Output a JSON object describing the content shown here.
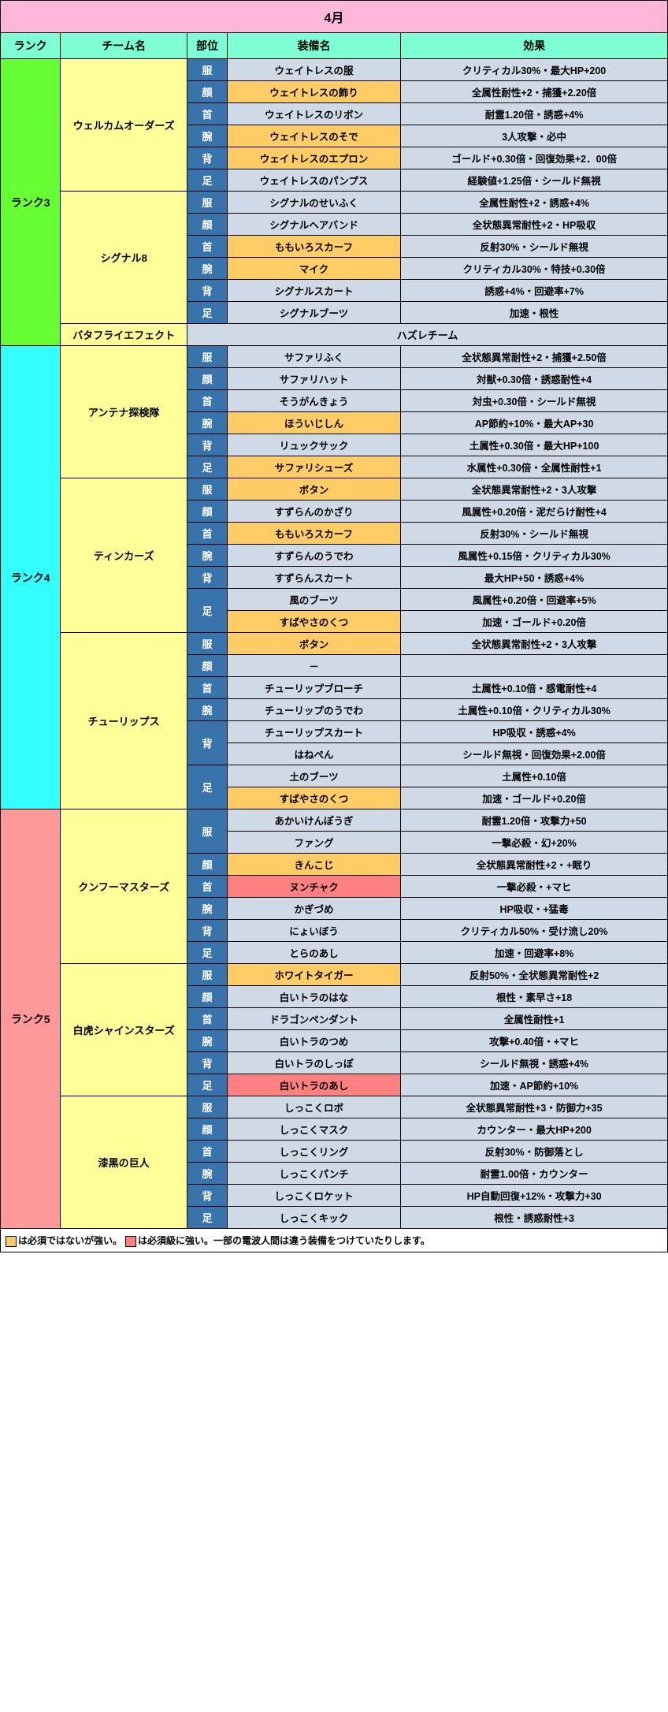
{
  "title": "4月",
  "headers": {
    "rank": "ランク",
    "team": "チーム名",
    "slot": "部位",
    "equip": "装備名",
    "effect": "効果"
  },
  "legend": {
    "orange_text": "は必須ではないが強い。",
    "red_text": "は必須級に強い。一部の電波人間は違う装備をつけていたりします。",
    "orange_color": "#ffcc66",
    "red_color": "#ff8080"
  },
  "ranks": [
    {
      "label": "ランク3",
      "class": "rank3",
      "teams": [
        {
          "name": "ウェルカムオーダーズ",
          "rows": [
            {
              "slot": "服",
              "equip": "ウェイトレスの服",
              "effect": "クリティカル30%・最大HP+200"
            },
            {
              "slot": "顔",
              "equip": "ウェイトレスの飾り",
              "effect": "全属性耐性+2・捕獲+2.20倍",
              "equip_hl": "orange"
            },
            {
              "slot": "首",
              "equip": "ウェイトレスのリボン",
              "effect": "耐霊1.20倍・誘惑+4%"
            },
            {
              "slot": "腕",
              "equip": "ウェイトレスのそで",
              "effect": "3人攻撃・必中",
              "equip_hl": "orange"
            },
            {
              "slot": "背",
              "equip": "ウェイトレスのエプロン",
              "effect": "ゴールド+0.30倍・回復効果+2．00倍",
              "equip_hl": "orange"
            },
            {
              "slot": "足",
              "equip": "ウェイトレスのパンプス",
              "effect": "経験値+1.25倍・シールド無視"
            }
          ]
        },
        {
          "name": "シグナル8",
          "rows": [
            {
              "slot": "服",
              "equip": "シグナルのせいふく",
              "effect": "全属性耐性+2・誘惑+4%"
            },
            {
              "slot": "顔",
              "equip": "シグナルヘアバンド",
              "effect": "全状態異常耐性+2・HP吸収"
            },
            {
              "slot": "首",
              "equip": "ももいろスカーフ",
              "effect": "反射30%・シールド無視",
              "equip_hl": "orange"
            },
            {
              "slot": "腕",
              "equip": "マイク",
              "effect": "クリティカル30%・特技+0.30倍",
              "equip_hl": "orange"
            },
            {
              "slot": "背",
              "equip": "シグナルスカート",
              "effect": "誘惑+4%・回避率+7%"
            },
            {
              "slot": "足",
              "equip": "シグナルブーツ",
              "effect": "加速・根性"
            }
          ]
        },
        {
          "name": "バタフライエフェクト",
          "hazure": "ハズレチーム"
        }
      ]
    },
    {
      "label": "ランク4",
      "class": "rank4",
      "teams": [
        {
          "name": "アンテナ探検隊",
          "rows": [
            {
              "slot": "服",
              "equip": "サファリふく",
              "effect": "全状態異常耐性+2・捕獲+2.50倍"
            },
            {
              "slot": "顔",
              "equip": "サファリハット",
              "effect": "対獣+0.30倍・誘惑耐性+4"
            },
            {
              "slot": "首",
              "equip": "そうがんきょう",
              "effect": "対虫+0.30倍・シールド無視"
            },
            {
              "slot": "腕",
              "equip": "ほういじしん",
              "effect": "AP節約+10%・最大AP+30",
              "equip_hl": "orange"
            },
            {
              "slot": "背",
              "equip": "リュックサック",
              "effect": "土属性+0.30倍・最大HP+100"
            },
            {
              "slot": "足",
              "equip": "サファリシューズ",
              "effect": "水属性+0.30倍・全属性耐性+1",
              "equip_hl": "orange"
            }
          ]
        },
        {
          "name": "ティンカーズ",
          "rows": [
            {
              "slot": "服",
              "equip": "ボタン",
              "effect": "全状態異常耐性+2・3人攻撃",
              "equip_hl": "orange"
            },
            {
              "slot": "顔",
              "equip": "すずらんのかざり",
              "effect": "風属性+0.20倍・泥だらけ耐性+4"
            },
            {
              "slot": "首",
              "equip": "ももいろスカーフ",
              "effect": "反射30%・シールド無視",
              "equip_hl": "orange"
            },
            {
              "slot": "腕",
              "equip": "すずらんのうでわ",
              "effect": "風属性+0.15倍・クリティカル30%"
            },
            {
              "slot": "背",
              "equip": "すずらんスカート",
              "effect": "最大HP+50・誘惑+4%"
            },
            {
              "slot": "足",
              "span": 2,
              "sub": [
                {
                  "equip": "風のブーツ",
                  "effect": "風属性+0.20倍・回避率+5%"
                },
                {
                  "equip": "すばやさのくつ",
                  "effect": "加速・ゴールド+0.20倍",
                  "equip_hl": "orange"
                }
              ]
            }
          ]
        },
        {
          "name": "チューリップス",
          "rows": [
            {
              "slot": "服",
              "equip": "ボタン",
              "effect": "全状態異常耐性+2・3人攻撃",
              "equip_hl": "orange"
            },
            {
              "slot": "顔",
              "equip": "－",
              "effect": ""
            },
            {
              "slot": "首",
              "equip": "チューリップブローチ",
              "effect": "土属性+0.10倍・感電耐性+4"
            },
            {
              "slot": "腕",
              "equip": "チューリップのうでわ",
              "effect": "土属性+0.10倍・クリティカル30%"
            },
            {
              "slot": "背",
              "span": 2,
              "sub": [
                {
                  "equip": "チューリップスカート",
                  "effect": "HP吸収・誘惑+4%"
                },
                {
                  "equip": "はねぺん",
                  "effect": "シールド無視・回復効果+2.00倍"
                }
              ]
            },
            {
              "slot": "足",
              "span": 2,
              "sub": [
                {
                  "equip": "土のブーツ",
                  "effect": "土属性+0.10倍"
                },
                {
                  "equip": "すばやさのくつ",
                  "effect": "加速・ゴールド+0.20倍",
                  "equip_hl": "orange"
                }
              ]
            }
          ]
        }
      ]
    },
    {
      "label": "ランク5",
      "class": "rank5",
      "teams": [
        {
          "name": "クンフーマスターズ",
          "rows": [
            {
              "slot": "服",
              "span": 2,
              "sub": [
                {
                  "equip": "あかいけんぽうぎ",
                  "effect": "耐霊1.20倍・攻撃力+50"
                },
                {
                  "equip": "ファング",
                  "effect": "一撃必殺・幻+20%"
                }
              ]
            },
            {
              "slot": "顔",
              "equip": "きんこじ",
              "effect": "全状態異常耐性+2・+眠り",
              "equip_hl": "orange"
            },
            {
              "slot": "首",
              "equip": "ヌンチャク",
              "effect": "一撃必殺・+マヒ",
              "equip_hl": "red"
            },
            {
              "slot": "腕",
              "equip": "かぎづめ",
              "effect": "HP吸収・+猛毒"
            },
            {
              "slot": "背",
              "equip": "にょいぼう",
              "effect": "クリティカル50%・受け流し20%"
            },
            {
              "slot": "足",
              "equip": "とらのあし",
              "effect": "加速・回避率+8%"
            }
          ]
        },
        {
          "name": "白虎シャインスターズ",
          "rows": [
            {
              "slot": "服",
              "equip": "ホワイトタイガー",
              "effect": "反射50%・全状態異常耐性+2",
              "equip_hl": "orange"
            },
            {
              "slot": "顔",
              "equip": "白いトラのはな",
              "effect": "根性・素早さ+18"
            },
            {
              "slot": "首",
              "equip": "ドラゴンペンダント",
              "effect": "全属性耐性+1"
            },
            {
              "slot": "腕",
              "equip": "白いトラのつめ",
              "effect": "攻撃+0.40倍・+マヒ"
            },
            {
              "slot": "背",
              "equip": "白いトラのしっぽ",
              "effect": "シールド無視・誘惑+4%"
            },
            {
              "slot": "足",
              "equip": "白いトラのあし",
              "effect": "加速・AP節約+10%",
              "equip_hl": "red"
            }
          ]
        },
        {
          "name": "漆黒の巨人",
          "rows": [
            {
              "slot": "服",
              "equip": "しっこくロボ",
              "effect": "全状態異常耐性+3・防御力+35"
            },
            {
              "slot": "顔",
              "equip": "しっこくマスク",
              "effect": "カウンター・最大HP+200"
            },
            {
              "slot": "首",
              "equip": "しっこくリング",
              "effect": "反射30%・防御落とし"
            },
            {
              "slot": "腕",
              "equip": "しっこくパンチ",
              "effect": "耐霊1.00倍・カウンター"
            },
            {
              "slot": "背",
              "equip": "しっこくロケット",
              "effect": "HP自動回復+12%・攻撃力+30"
            },
            {
              "slot": "足",
              "equip": "しっこくキック",
              "effect": "根性・誘惑耐性+3"
            }
          ]
        }
      ]
    }
  ]
}
